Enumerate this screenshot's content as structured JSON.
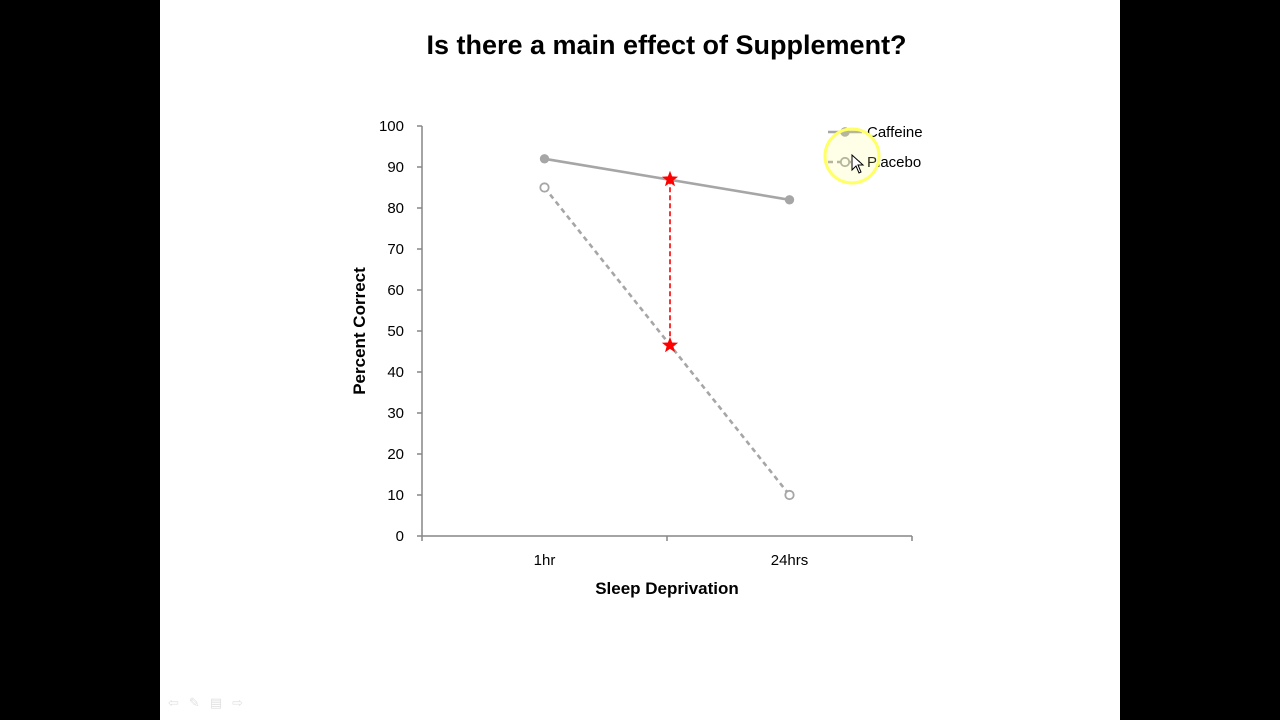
{
  "slide": {
    "title": "Is there a main effect of Supplement?"
  },
  "chart_data": {
    "type": "line",
    "categories": [
      "1hr",
      "24hrs"
    ],
    "series": [
      {
        "name": "Caffeine",
        "values": [
          92,
          82
        ],
        "style": "solid",
        "marker": "filled-circle",
        "color": "#a6a6a6"
      },
      {
        "name": "Placebo",
        "values": [
          85,
          10
        ],
        "style": "dashed",
        "marker": "open-circle",
        "color": "#a6a6a6"
      }
    ],
    "annotations": [
      {
        "type": "vertical-dashed-line-with-star-markers",
        "x": "midpoint between 1hr and 24hrs",
        "y_top": 87,
        "y_bottom": 46.5,
        "color": "#ff0000"
      }
    ],
    "xlabel": "Sleep Deprivation",
    "ylabel": "Percent Correct",
    "ylim": [
      0,
      100
    ],
    "yticks": [
      0,
      10,
      20,
      30,
      40,
      50,
      60,
      70,
      80,
      90,
      100
    ],
    "grid": false,
    "legend_position": "top-right",
    "highlight": {
      "target": "legend",
      "color": "#ffff66"
    }
  },
  "icons": [
    "mouse-cursor-icon",
    "prev-slide-icon",
    "pen-icon",
    "menu-icon",
    "next-slide-icon"
  ],
  "nav": {
    "prev": "⇦",
    "pen": "✎",
    "menu": "▤",
    "next": "⇨"
  }
}
